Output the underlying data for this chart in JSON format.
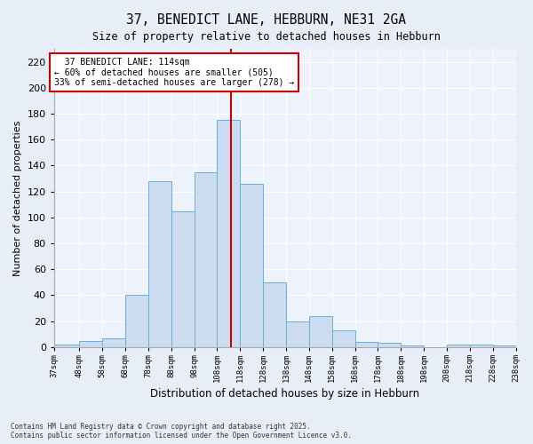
{
  "title": "37, BENEDICT LANE, HEBBURN, NE31 2GA",
  "subtitle": "Size of property relative to detached houses in Hebburn",
  "xlabel": "Distribution of detached houses by size in Hebburn",
  "ylabel": "Number of detached properties",
  "property_label": "37 BENEDICT LANE: 114sqm",
  "pct_smaller": "60% of detached houses are smaller (505)",
  "pct_larger": "33% of semi-detached houses are larger (278)",
  "bins": [
    37,
    48,
    58,
    68,
    78,
    88,
    98,
    108,
    118,
    128,
    138,
    148,
    158,
    168,
    178,
    188,
    198,
    208,
    218,
    228,
    238
  ],
  "bar_values": [
    2,
    5,
    7,
    40,
    128,
    105,
    135,
    175,
    126,
    50,
    20,
    24,
    13,
    4,
    3,
    1,
    0,
    2,
    2,
    1
  ],
  "bar_color": "#ccdcf0",
  "bar_edge_color": "#6baed6",
  "vline_color": "#cc0000",
  "vline_x": 114,
  "annotation_box_color": "#cc0000",
  "ylim": [
    0,
    230
  ],
  "yticks": [
    0,
    20,
    40,
    60,
    80,
    100,
    120,
    140,
    160,
    180,
    200,
    220
  ],
  "tick_labels": [
    "37sqm",
    "48sqm",
    "58sqm",
    "68sqm",
    "78sqm",
    "88sqm",
    "98sqm",
    "108sqm",
    "118sqm",
    "128sqm",
    "138sqm",
    "148sqm",
    "158sqm",
    "168sqm",
    "178sqm",
    "188sqm",
    "198sqm",
    "208sqm",
    "218sqm",
    "228sqm",
    "238sqm"
  ],
  "footer_line1": "Contains HM Land Registry data © Crown copyright and database right 2025.",
  "footer_line2": "Contains public sector information licensed under the Open Government Licence v3.0.",
  "bg_color": "#e8eef8",
  "plot_bg_color": "#eef2fa",
  "grid_color": "#ffffff"
}
